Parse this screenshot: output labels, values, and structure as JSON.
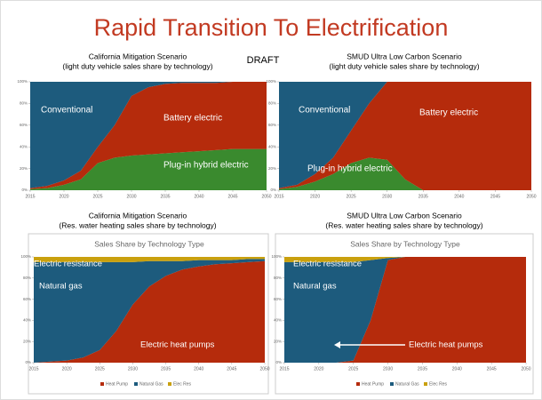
{
  "slide": {
    "title": "Rapid Transition To Electrification",
    "stamp": "DRAFT"
  },
  "chart_data": [
    {
      "type": "stacked-area",
      "title": "California Mitigation Scenario",
      "subtitle": "(light duty vehicle sales share by technology)",
      "x": [
        2015,
        2017.5,
        2020,
        2022.5,
        2025,
        2027.5,
        2030,
        2032.5,
        2035,
        2037.5,
        2040,
        2042.5,
        2045,
        2047.5,
        2050
      ],
      "series": [
        {
          "name": "Plug-in hybrid electric",
          "color": "#3a8a2e",
          "values": [
            1,
            2,
            5,
            10,
            25,
            30,
            32,
            33,
            34,
            35,
            36,
            37,
            38,
            38,
            38
          ]
        },
        {
          "name": "Battery electric",
          "color": "#b52b0c",
          "values": [
            1,
            2,
            4,
            8,
            15,
            30,
            55,
            62,
            64,
            64,
            63,
            62,
            62,
            62,
            62
          ]
        },
        {
          "name": "Conventional",
          "color": "#1d5b7d",
          "values": [
            98,
            96,
            91,
            82,
            60,
            40,
            13,
            5,
            2,
            1,
            1,
            1,
            0,
            0,
            0
          ]
        }
      ],
      "xlim": [
        2015,
        2050
      ],
      "xticks": [
        2015,
        2020,
        2025,
        2030,
        2035,
        2040,
        2045,
        2050
      ],
      "ylim": [
        0,
        100
      ],
      "yticks": [
        {
          "value": 0,
          "label": "0%"
        },
        {
          "value": 20,
          "label": "20%"
        },
        {
          "value": 40,
          "label": "40%"
        },
        {
          "value": 60,
          "label": "60%"
        },
        {
          "value": 80,
          "label": "80%"
        },
        {
          "value": 100,
          "label": "100%"
        }
      ]
    },
    {
      "type": "stacked-area",
      "title": "SMUD Ultra Low Carbon Scenario",
      "subtitle": "(light duty vehicle sales share by technology)",
      "x": [
        2015,
        2017.5,
        2020,
        2022.5,
        2025,
        2027.5,
        2030,
        2032.5,
        2035,
        2037.5,
        2040,
        2042.5,
        2045,
        2047.5,
        2050
      ],
      "series": [
        {
          "name": "Plug-in hybrid electric",
          "color": "#3a8a2e",
          "values": [
            1,
            3,
            8,
            15,
            25,
            30,
            28,
            10,
            0,
            0,
            0,
            0,
            0,
            0,
            0
          ]
        },
        {
          "name": "Battery electric",
          "color": "#b52b0c",
          "values": [
            1,
            2,
            7,
            15,
            30,
            50,
            72,
            90,
            100,
            100,
            100,
            100,
            100,
            100,
            100
          ]
        },
        {
          "name": "Conventional",
          "color": "#1d5b7d",
          "values": [
            98,
            95,
            85,
            70,
            45,
            20,
            0,
            0,
            0,
            0,
            0,
            0,
            0,
            0,
            0
          ]
        }
      ],
      "xlim": [
        2015,
        2050
      ],
      "xticks": [
        2015,
        2020,
        2025,
        2030,
        2035,
        2040,
        2045,
        2050
      ],
      "ylim": [
        0,
        100
      ],
      "yticks": [
        {
          "value": 0,
          "label": "0%"
        },
        {
          "value": 20,
          "label": "20%"
        },
        {
          "value": 40,
          "label": "40%"
        },
        {
          "value": 60,
          "label": "60%"
        },
        {
          "value": 80,
          "label": "80%"
        },
        {
          "value": 100,
          "label": "100%"
        }
      ]
    },
    {
      "type": "stacked-area",
      "title": "California Mitigation Scenario",
      "subtitle": "(Res. water heating sales share by technology)",
      "inner_title": "Sales Share by Technology Type",
      "x": [
        2015,
        2017.5,
        2020,
        2022.5,
        2025,
        2027.5,
        2030,
        2032.5,
        2035,
        2037.5,
        2040,
        2042.5,
        2045,
        2047.5,
        2050
      ],
      "series": [
        {
          "name": "Electric heat pumps",
          "color": "#b52b0c",
          "values": [
            0,
            1,
            2,
            5,
            12,
            30,
            55,
            72,
            82,
            88,
            91,
            93,
            94,
            95,
            96
          ]
        },
        {
          "name": "Natural gas",
          "color": "#1d5b7d",
          "values": [
            95,
            94,
            93,
            90,
            83,
            65,
            40,
            24,
            14,
            8,
            6,
            4,
            3,
            3,
            2
          ]
        },
        {
          "name": "Electric resistance",
          "color": "#c9a00e",
          "values": [
            5,
            5,
            5,
            5,
            5,
            5,
            5,
            4,
            4,
            4,
            3,
            3,
            3,
            2,
            2
          ]
        }
      ],
      "legend_labels": [
        "Heat Pump",
        "Natural Gas",
        "Elec Res"
      ],
      "xlim": [
        2015,
        2050
      ],
      "xticks": [
        2015,
        2020,
        2025,
        2030,
        2035,
        2040,
        2045,
        2050
      ],
      "ylim": [
        0,
        100
      ],
      "yticks": [
        {
          "value": 0,
          "label": "0%"
        },
        {
          "value": 20,
          "label": "20%"
        },
        {
          "value": 40,
          "label": "40%"
        },
        {
          "value": 60,
          "label": "60%"
        },
        {
          "value": 80,
          "label": "80%"
        },
        {
          "value": 100,
          "label": "100%"
        }
      ]
    },
    {
      "type": "stacked-area",
      "title": "SMUD Ultra Low Carbon Scenario",
      "subtitle": "(Res. water heating sales share by technology)",
      "inner_title": "Sales Share by Technology Type",
      "x": [
        2015,
        2017.5,
        2020,
        2022.5,
        2025,
        2027.5,
        2030,
        2032.5,
        2035,
        2037.5,
        2040,
        2042.5,
        2045,
        2047.5,
        2050
      ],
      "series": [
        {
          "name": "Electric heat pumps",
          "color": "#b52b0c",
          "values": [
            0,
            0,
            0,
            0,
            2,
            40,
            97,
            100,
            100,
            100,
            100,
            100,
            100,
            100,
            100
          ]
        },
        {
          "name": "Natural gas",
          "color": "#1d5b7d",
          "values": [
            95,
            95,
            95,
            95,
            93,
            57,
            2,
            0,
            0,
            0,
            0,
            0,
            0,
            0,
            0
          ]
        },
        {
          "name": "Electric resistance",
          "color": "#c9a00e",
          "values": [
            5,
            5,
            5,
            5,
            5,
            3,
            1,
            0,
            0,
            0,
            0,
            0,
            0,
            0,
            0
          ]
        }
      ],
      "legend_labels": [
        "Heat Pump",
        "Natural Gas",
        "Elec Res"
      ],
      "xlim": [
        2015,
        2050
      ],
      "xticks": [
        2015,
        2020,
        2025,
        2030,
        2035,
        2040,
        2045,
        2050
      ],
      "ylim": [
        0,
        100
      ],
      "yticks": [
        {
          "value": 0,
          "label": "0%"
        },
        {
          "value": 20,
          "label": "20%"
        },
        {
          "value": 40,
          "label": "40%"
        },
        {
          "value": 60,
          "label": "60%"
        },
        {
          "value": 80,
          "label": "80%"
        },
        {
          "value": 100,
          "label": "100%"
        }
      ]
    }
  ]
}
